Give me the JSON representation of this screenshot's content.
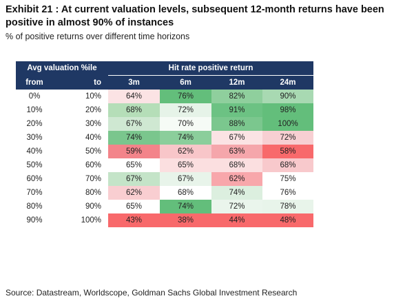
{
  "title": "Exhibit 21 : At current valuation levels, subsequent 12-month returns have been positive in almost 90% of instances",
  "subtitle": "% of positive returns over different time horizons",
  "source": "Source: Datastream, Worldscope, Goldman Sachs Global Investment Research",
  "chart_data": {
    "type": "heatmap",
    "title": "Exhibit 21 : At current valuation levels, subsequent 12-month returns have been positive in almost 90% of instances",
    "subtitle": "% of positive returns over different time horizons",
    "header_group_left": "Avg valuation %ile",
    "header_group_right": "Hit rate positive return",
    "row_headers": [
      "from",
      "to"
    ],
    "columns": [
      "3m",
      "6m",
      "12m",
      "24m"
    ],
    "rows": [
      {
        "from": "0%",
        "to": "10%",
        "values": [
          "64%",
          "76%",
          "82%",
          "90%"
        ]
      },
      {
        "from": "10%",
        "to": "20%",
        "values": [
          "68%",
          "72%",
          "91%",
          "98%"
        ]
      },
      {
        "from": "20%",
        "to": "30%",
        "values": [
          "67%",
          "70%",
          "88%",
          "100%"
        ]
      },
      {
        "from": "30%",
        "to": "40%",
        "values": [
          "74%",
          "74%",
          "67%",
          "72%"
        ]
      },
      {
        "from": "40%",
        "to": "50%",
        "values": [
          "59%",
          "62%",
          "63%",
          "58%"
        ]
      },
      {
        "from": "50%",
        "to": "60%",
        "values": [
          "65%",
          "65%",
          "68%",
          "68%"
        ]
      },
      {
        "from": "60%",
        "to": "70%",
        "values": [
          "67%",
          "67%",
          "62%",
          "75%"
        ]
      },
      {
        "from": "70%",
        "to": "80%",
        "values": [
          "62%",
          "68%",
          "74%",
          "76%"
        ]
      },
      {
        "from": "80%",
        "to": "90%",
        "values": [
          "65%",
          "74%",
          "72%",
          "78%"
        ]
      },
      {
        "from": "90%",
        "to": "100%",
        "values": [
          "43%",
          "38%",
          "44%",
          "48%"
        ]
      }
    ],
    "cell_colors": [
      [
        "#fbe3e4",
        "#63be7b",
        "#8fcf9d",
        "#a8d9b2"
      ],
      [
        "#b5deb8",
        "#e6f3e8",
        "#6cc283",
        "#63be7b"
      ],
      [
        "#cfe8d2",
        "#f6fbf6",
        "#7bc78e",
        "#63be7b"
      ],
      [
        "#7ac68d",
        "#8bce9b",
        "#fbe3e4",
        "#f7cfd2"
      ],
      [
        "#f3848a",
        "#f8c6c9",
        "#f5a6ab",
        "#f8696b"
      ],
      [
        "#ffffff",
        "#fbdfe0",
        "#fbdfe0",
        "#f8c9cc"
      ],
      [
        "#c4e4c8",
        "#e8f4ea",
        "#f8a7ab",
        "#ffffff"
      ],
      [
        "#f9ced1",
        "#ffffff",
        "#dcefdf",
        "#ffffff"
      ],
      [
        "#ffffff",
        "#63be7b",
        "#eaf5ec",
        "#e8f4ea"
      ],
      [
        "#f8696b",
        "#f8696b",
        "#f8696b",
        "#f8696b"
      ]
    ],
    "header_color": "#1f3864"
  }
}
